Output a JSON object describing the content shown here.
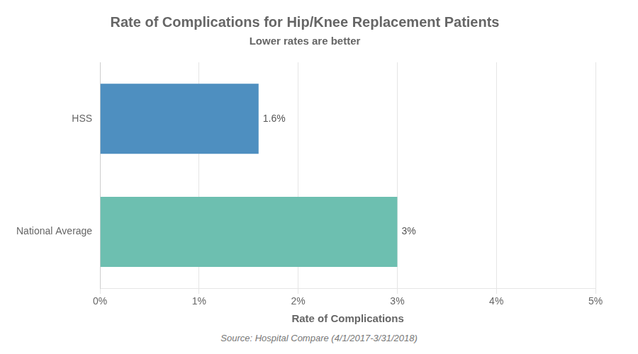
{
  "chart_data": {
    "type": "bar",
    "orientation": "horizontal",
    "title": "Rate of Complications for Hip/Knee Replacement Patients",
    "subtitle": "Lower rates are better",
    "source": "Source: Hospital Compare (4/1/2017-3/31/2018)",
    "xlabel": "Rate of Complications",
    "categories": [
      "National Average",
      "HSS"
    ],
    "values": [
      3.0,
      1.6
    ],
    "value_labels": [
      "3%",
      "1.6%"
    ],
    "data_labels": true,
    "colors": [
      "#6dbfb0",
      "#4e8fc0"
    ],
    "xlim": [
      0,
      5
    ],
    "xticks": [
      {
        "value": 0,
        "label": "0%"
      },
      {
        "value": 1,
        "label": "1%"
      },
      {
        "value": 2,
        "label": "2%"
      },
      {
        "value": 3,
        "label": "3%"
      },
      {
        "value": 4,
        "label": "4%"
      },
      {
        "value": 5,
        "label": "5%"
      }
    ],
    "grid": "x"
  }
}
